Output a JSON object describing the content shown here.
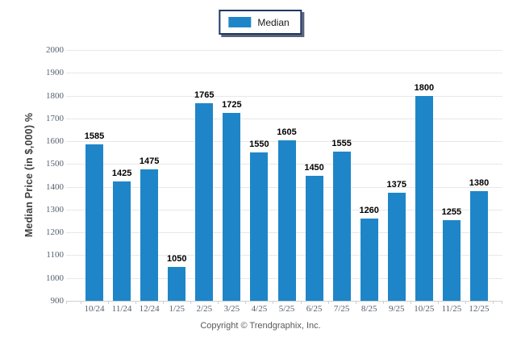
{
  "legend": {
    "label": "Median"
  },
  "y_axis": {
    "title": "Median Price (in $,000) %"
  },
  "footer": {
    "copyright_text": "Copyright © Trendgraphix, Inc."
  },
  "colors": {
    "bar": "#1e86c8",
    "grid_line": "#e8e8e8",
    "axis_line": "#cfcfcf",
    "tick_label": "#55606e",
    "value_label": "#000000",
    "axis_title": "#3f3f3f",
    "legend_border": "#1f3864",
    "legend_shadow": "#5a6378",
    "copyright": "#595959"
  },
  "chart_data": {
    "type": "bar",
    "title": "",
    "categories": [
      "10/24",
      "11/24",
      "12/24",
      "1/25",
      "2/25",
      "3/25",
      "4/25",
      "5/25",
      "6/25",
      "7/25",
      "8/25",
      "9/25",
      "10/25",
      "11/25",
      "12/25"
    ],
    "series": [
      {
        "name": "Median",
        "values": [
          1585,
          1425,
          1475,
          1050,
          1765,
          1725,
          1550,
          1605,
          1450,
          1555,
          1260,
          1375,
          1800,
          1255,
          1380
        ]
      }
    ],
    "xlabel": "",
    "ylabel": "Median Price (in $,000) %",
    "ylim": [
      900,
      2000
    ],
    "ytick_step": 100,
    "grid": true,
    "legend_position": "top-center",
    "data_labels": true
  }
}
